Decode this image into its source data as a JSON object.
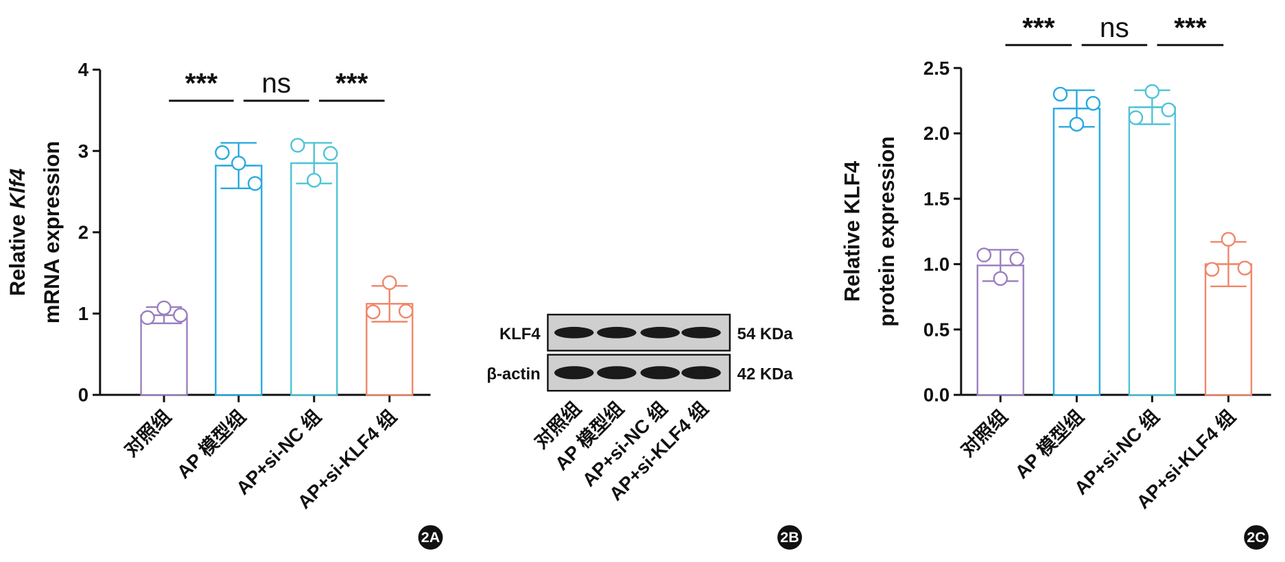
{
  "chart_data": [
    {
      "type": "bar",
      "panel": "2A",
      "ylabel": [
        "Relative",
        "mRNA expression"
      ],
      "ylabel_italic": "Klf4",
      "categories": [
        "对照组",
        "AP 模型组",
        "AP+si-NC 组",
        "AP+si-KLF4 组"
      ],
      "colors": [
        "#9b7fc0",
        "#29a9e0",
        "#4fc3d6",
        "#f0876a"
      ],
      "values": [
        0.98,
        2.82,
        2.85,
        1.12
      ],
      "errors": [
        0.1,
        0.28,
        0.25,
        0.22
      ],
      "points": [
        [
          0.95,
          1.07,
          0.98
        ],
        [
          2.98,
          2.85,
          2.6
        ],
        [
          3.07,
          2.64,
          2.97
        ],
        [
          1.02,
          1.38,
          1.03
        ]
      ],
      "ylim": [
        0,
        4
      ],
      "yticks": [
        0,
        1,
        2,
        3,
        4
      ],
      "significance": [
        "***",
        "ns",
        "***"
      ]
    },
    {
      "type": "bar",
      "panel": "2C",
      "ylabel": [
        "Relative KLF4",
        "protein expression"
      ],
      "categories": [
        "对照组",
        "AP 模型组",
        "AP+si-NC 组",
        "AP+si-KLF4 组"
      ],
      "colors": [
        "#9b7fc0",
        "#29a9e0",
        "#4fc3d6",
        "#f0876a"
      ],
      "values": [
        0.99,
        2.19,
        2.2,
        1.0
      ],
      "errors": [
        0.12,
        0.14,
        0.13,
        0.17
      ],
      "points": [
        [
          1.07,
          0.89,
          1.04
        ],
        [
          2.3,
          2.07,
          2.23
        ],
        [
          2.12,
          2.32,
          2.18
        ],
        [
          0.96,
          1.19,
          0.97
        ]
      ],
      "ylim": [
        0,
        2.5
      ],
      "yticks": [
        {
          "value": 0,
          "label": "0.0"
        },
        {
          "value": 0.5,
          "label": "0.5"
        },
        {
          "value": 1,
          "label": "1.0"
        },
        {
          "value": 1.5,
          "label": "1.5"
        },
        {
          "value": 2,
          "label": "2.0"
        },
        {
          "value": 2.5,
          "label": "2.5"
        }
      ],
      "significance": [
        "***",
        "ns",
        "***"
      ]
    }
  ],
  "blot": {
    "panel": "2B",
    "categories": [
      "对照组",
      "AP 模型组",
      "AP+si-NC 组",
      "AP+si-KLF4 组"
    ],
    "rows": [
      {
        "label": "KLF4",
        "size": "54 KDa"
      },
      {
        "label": "β-actin",
        "size": "42 KDa"
      }
    ]
  }
}
